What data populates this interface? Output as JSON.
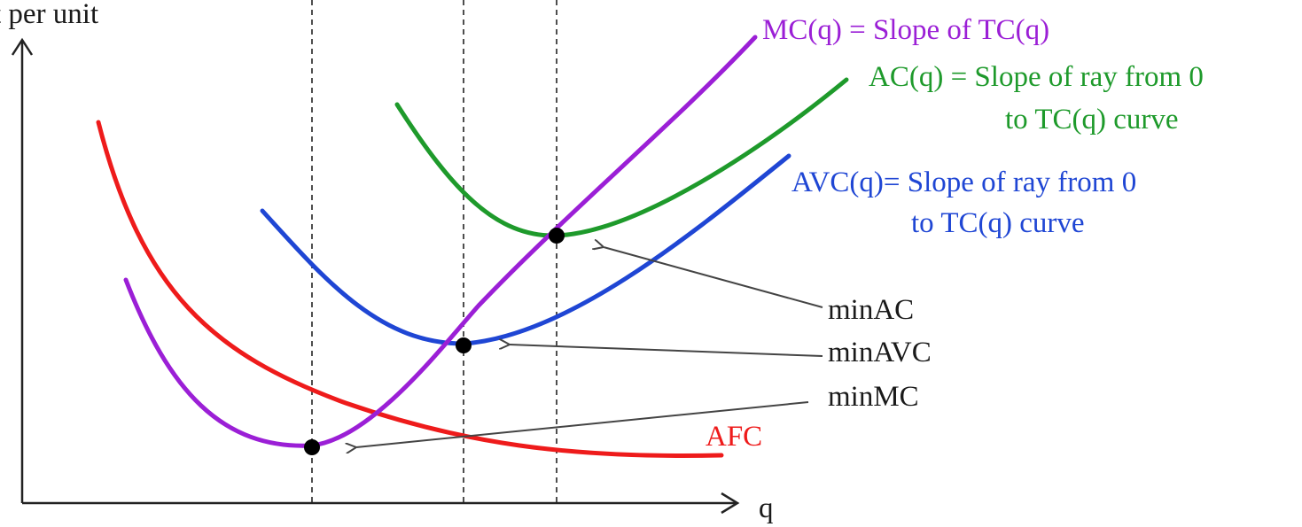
{
  "axes": {
    "y_label": "t per unit",
    "x_label": "q"
  },
  "curves": {
    "mc": {
      "label": "MC(q) = Slope of TC(q)",
      "color": "#9b1fd6"
    },
    "ac": {
      "label_line1": "AC(q) = Slope of ray from 0",
      "label_line2": "to TC(q) curve",
      "color": "#1e9a2b"
    },
    "avc": {
      "label_line1": "AVC(q)= Slope of ray from 0",
      "label_line2": "to TC(q) curve",
      "color": "#1f46d4"
    },
    "afc": {
      "label": "AFC",
      "color": "#ee1b1b"
    }
  },
  "annotations": {
    "min_ac": "minAC",
    "min_avc": "minAVC",
    "min_mc": "minMC"
  },
  "text_color": "#1a1a1a"
}
